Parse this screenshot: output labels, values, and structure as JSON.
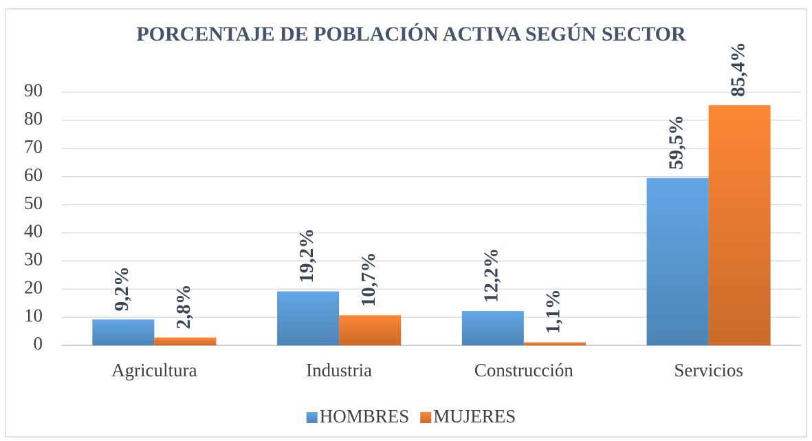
{
  "chart_data": {
    "type": "bar",
    "title": "PORCENTAJE DE POBLACIÓN ACTIVA SEGÚN SECTOR",
    "categories": [
      "Agricultura",
      "Industria",
      "Construcción",
      "Servicios"
    ],
    "series": [
      {
        "name": "HOMBRES",
        "color": "#5b9bd5",
        "values": [
          9.2,
          19.2,
          12.2,
          59.5
        ],
        "value_labels": [
          "9,2%",
          "19,2%",
          "12,2%",
          "59,5%"
        ]
      },
      {
        "name": "MUJERES",
        "color": "#ed7d31",
        "values": [
          2.8,
          10.7,
          1.1,
          85.4
        ],
        "value_labels": [
          "2,8%",
          "10,7%",
          "1,1%",
          "85,4%"
        ]
      }
    ],
    "ylim": [
      0,
      90
    ],
    "yticks": [
      0,
      10,
      20,
      30,
      40,
      50,
      60,
      70,
      80,
      90
    ],
    "grid": true,
    "legend": "bottom"
  }
}
